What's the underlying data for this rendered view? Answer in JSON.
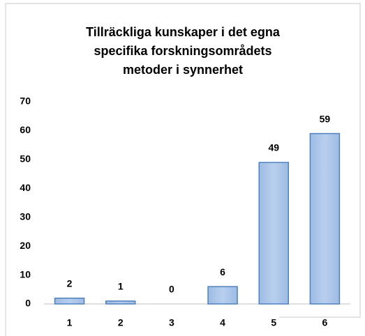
{
  "chart_data": {
    "type": "bar",
    "title": [
      "Tillräckliga  kunskaper i det egna",
      "specifika  forskningsområdets",
      "metoder i synnerhet"
    ],
    "categories": [
      "1",
      "2",
      "3",
      "4",
      "5",
      "6"
    ],
    "values": [
      2,
      1,
      0,
      6,
      49,
      59
    ],
    "color": "#a7c2e6",
    "ylim": [
      0,
      70
    ],
    "yticks": [
      0,
      10,
      20,
      30,
      40,
      50,
      60,
      70
    ],
    "grid": false
  }
}
